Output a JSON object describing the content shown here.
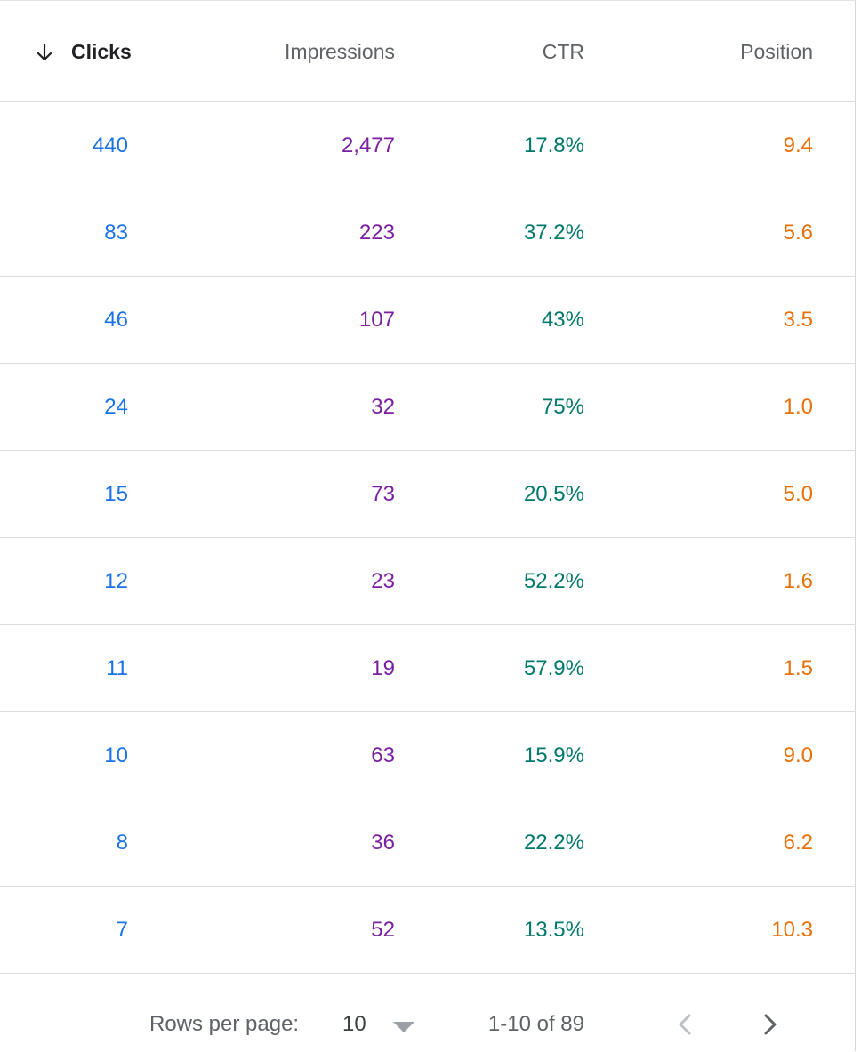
{
  "table": {
    "columns": [
      {
        "key": "clicks",
        "label": "Clicks",
        "sorted": "descending"
      },
      {
        "key": "impressions",
        "label": "Impressions"
      },
      {
        "key": "ctr",
        "label": "CTR"
      },
      {
        "key": "position",
        "label": "Position"
      }
    ],
    "rows": [
      {
        "clicks": "440",
        "impressions": "2,477",
        "ctr": "17.8%",
        "position": "9.4"
      },
      {
        "clicks": "83",
        "impressions": "223",
        "ctr": "37.2%",
        "position": "5.6"
      },
      {
        "clicks": "46",
        "impressions": "107",
        "ctr": "43%",
        "position": "3.5"
      },
      {
        "clicks": "24",
        "impressions": "32",
        "ctr": "75%",
        "position": "1.0"
      },
      {
        "clicks": "15",
        "impressions": "73",
        "ctr": "20.5%",
        "position": "5.0"
      },
      {
        "clicks": "12",
        "impressions": "23",
        "ctr": "52.2%",
        "position": "1.6"
      },
      {
        "clicks": "11",
        "impressions": "19",
        "ctr": "57.9%",
        "position": "1.5"
      },
      {
        "clicks": "10",
        "impressions": "63",
        "ctr": "15.9%",
        "position": "9.0"
      },
      {
        "clicks": "8",
        "impressions": "36",
        "ctr": "22.2%",
        "position": "6.2"
      },
      {
        "clicks": "7",
        "impressions": "52",
        "ctr": "13.5%",
        "position": "10.3"
      }
    ]
  },
  "pagination": {
    "rows_per_page_label": "Rows per page:",
    "rows_per_page_value": "10",
    "range_text": "1-10 of 89",
    "prev_icon": "chevron-left-icon",
    "next_icon": "chevron-right-icon"
  },
  "colors": {
    "clicks": "#1a73e8",
    "impressions": "#7b1fa2",
    "ctr": "#00796b",
    "position": "#e8710a"
  }
}
